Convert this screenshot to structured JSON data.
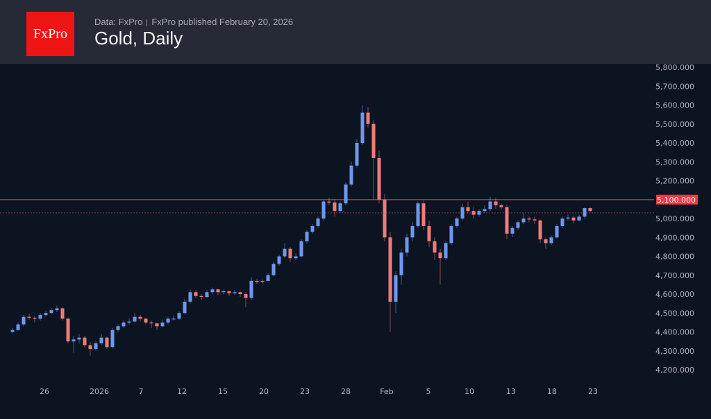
{
  "header": {
    "logo_text": "FxPro",
    "data_source": "Data: FxPro",
    "published": "FxPro published February 20, 2026",
    "title": "Gold, Daily"
  },
  "colors": {
    "background": "#0d1421",
    "header_bg": "#262a36",
    "logo_bg": "#f01515",
    "up": "#6e97ee",
    "down": "#f07b7b",
    "level_line": "#a8323e",
    "level_label_bg": "#f23645"
  },
  "chart_data": {
    "type": "candlestick",
    "title": "Gold, Daily",
    "ylim": [
      4150,
      5850
    ],
    "y_ticks": [
      "4,200.000",
      "4,300.000",
      "4,400.000",
      "4,500.000",
      "4,600.000",
      "4,700.000",
      "4,800.000",
      "4,900.000",
      "5,000.000",
      "5,100.000",
      "5,200.000",
      "5,300.000",
      "5,400.000",
      "5,500.000",
      "5,600.000",
      "5,700.000",
      "5,800.000"
    ],
    "y_tick_values": [
      4200,
      4300,
      4400,
      4500,
      4600,
      4700,
      4800,
      4900,
      5000,
      5100,
      5200,
      5300,
      5400,
      5500,
      5600,
      5700,
      5800
    ],
    "x_ticks": [
      "26",
      "2026",
      "7",
      "12",
      "15",
      "20",
      "23",
      "28",
      "Feb",
      "5",
      "10",
      "13",
      "18",
      "23"
    ],
    "horizontal_level": {
      "value": 5100,
      "label": "5,100.000"
    },
    "dashed_level": 5030,
    "grid": false,
    "ohlc": [
      [
        4400,
        4420,
        4395,
        4410
      ],
      [
        4410,
        4450,
        4405,
        4440
      ],
      [
        4440,
        4490,
        4430,
        4480
      ],
      [
        4480,
        4495,
        4465,
        4475
      ],
      [
        4475,
        4485,
        4450,
        4470
      ],
      [
        4470,
        4500,
        4460,
        4490
      ],
      [
        4490,
        4510,
        4480,
        4500
      ],
      [
        4500,
        4525,
        4495,
        4515
      ],
      [
        4515,
        4540,
        4505,
        4525
      ],
      [
        4525,
        4530,
        4460,
        4470
      ],
      [
        4470,
        4475,
        4340,
        4350
      ],
      [
        4350,
        4380,
        4290,
        4360
      ],
      [
        4360,
        4390,
        4340,
        4370
      ],
      [
        4370,
        4380,
        4320,
        4330
      ],
      [
        4330,
        4345,
        4275,
        4310
      ],
      [
        4310,
        4350,
        4300,
        4340
      ],
      [
        4340,
        4390,
        4330,
        4370
      ],
      [
        4370,
        4375,
        4310,
        4320
      ],
      [
        4320,
        4420,
        4315,
        4410
      ],
      [
        4410,
        4440,
        4400,
        4430
      ],
      [
        4430,
        4460,
        4420,
        4450
      ],
      [
        4450,
        4470,
        4440,
        4455
      ],
      [
        4455,
        4500,
        4450,
        4480
      ],
      [
        4480,
        4490,
        4455,
        4470
      ],
      [
        4470,
        4475,
        4440,
        4450
      ],
      [
        4450,
        4460,
        4420,
        4445
      ],
      [
        4445,
        4450,
        4410,
        4430
      ],
      [
        4430,
        4465,
        4425,
        4450
      ],
      [
        4450,
        4480,
        4440,
        4470
      ],
      [
        4470,
        4485,
        4460,
        4470
      ],
      [
        4470,
        4510,
        4465,
        4500
      ],
      [
        4500,
        4575,
        4495,
        4560
      ],
      [
        4560,
        4625,
        4550,
        4610
      ],
      [
        4610,
        4620,
        4580,
        4590
      ],
      [
        4590,
        4600,
        4570,
        4585
      ],
      [
        4585,
        4620,
        4580,
        4610
      ],
      [
        4610,
        4635,
        4600,
        4625
      ],
      [
        4625,
        4630,
        4595,
        4610
      ],
      [
        4610,
        4625,
        4600,
        4615
      ],
      [
        4615,
        4620,
        4590,
        4605
      ],
      [
        4605,
        4620,
        4595,
        4610
      ],
      [
        4610,
        4615,
        4585,
        4600
      ],
      [
        4600,
        4610,
        4530,
        4580
      ],
      [
        4580,
        4690,
        4570,
        4670
      ],
      [
        4670,
        4680,
        4655,
        4665
      ],
      [
        4665,
        4680,
        4655,
        4670
      ],
      [
        4670,
        4710,
        4665,
        4700
      ],
      [
        4700,
        4770,
        4695,
        4760
      ],
      [
        4760,
        4810,
        4750,
        4800
      ],
      [
        4800,
        4870,
        4790,
        4840
      ],
      [
        4840,
        4850,
        4770,
        4790
      ],
      [
        4790,
        4815,
        4780,
        4800
      ],
      [
        4800,
        4890,
        4795,
        4880
      ],
      [
        4880,
        4940,
        4870,
        4930
      ],
      [
        4930,
        4970,
        4920,
        4960
      ],
      [
        4960,
        5010,
        4950,
        5000
      ],
      [
        5000,
        5100,
        4990,
        5090
      ],
      [
        5090,
        5110,
        5070,
        5085
      ],
      [
        5085,
        5100,
        5010,
        5040
      ],
      [
        5040,
        5090,
        5030,
        5080
      ],
      [
        5080,
        5190,
        5070,
        5180
      ],
      [
        5180,
        5300,
        5170,
        5280
      ],
      [
        5280,
        5420,
        5270,
        5400
      ],
      [
        5400,
        5600,
        5390,
        5560
      ],
      [
        5560,
        5590,
        5480,
        5500
      ],
      [
        5500,
        5520,
        5100,
        5320
      ],
      [
        5320,
        5360,
        5080,
        5100
      ],
      [
        5100,
        5130,
        4880,
        4900
      ],
      [
        4900,
        4930,
        4400,
        4560
      ],
      [
        4560,
        4720,
        4500,
        4700
      ],
      [
        4700,
        4840,
        4650,
        4820
      ],
      [
        4820,
        4920,
        4800,
        4900
      ],
      [
        4900,
        4980,
        4880,
        4960
      ],
      [
        4960,
        5090,
        4950,
        5080
      ],
      [
        5080,
        5095,
        4940,
        4960
      ],
      [
        4960,
        4990,
        4850,
        4880
      ],
      [
        4880,
        4900,
        4780,
        4820
      ],
      [
        4820,
        4840,
        4650,
        4790
      ],
      [
        4790,
        4880,
        4780,
        4870
      ],
      [
        4870,
        4970,
        4860,
        4960
      ],
      [
        4960,
        5010,
        4950,
        5000
      ],
      [
        5000,
        5080,
        4990,
        5060
      ],
      [
        5060,
        5090,
        5030,
        5040
      ],
      [
        5040,
        5060,
        5000,
        5020
      ],
      [
        5020,
        5050,
        5010,
        5040
      ],
      [
        5040,
        5070,
        5030,
        5050
      ],
      [
        5050,
        5115,
        5040,
        5090
      ],
      [
        5090,
        5110,
        5050,
        5070
      ],
      [
        5070,
        5080,
        5050,
        5060
      ],
      [
        5060,
        5070,
        4890,
        4920
      ],
      [
        4920,
        4960,
        4900,
        4950
      ],
      [
        4950,
        4990,
        4940,
        4980
      ],
      [
        4980,
        5030,
        4970,
        5000
      ],
      [
        5000,
        5010,
        4980,
        4995
      ],
      [
        4995,
        5010,
        4970,
        4990
      ],
      [
        4990,
        4995,
        4870,
        4890
      ],
      [
        4890,
        4900,
        4840,
        4870
      ],
      [
        4870,
        4910,
        4860,
        4900
      ],
      [
        4900,
        4970,
        4895,
        4960
      ],
      [
        4960,
        5010,
        4950,
        5000
      ],
      [
        5000,
        5020,
        4990,
        5005
      ],
      [
        5005,
        5015,
        4975,
        4990
      ],
      [
        4990,
        5020,
        4985,
        5010
      ],
      [
        5010,
        5060,
        5000,
        5055
      ],
      [
        5055,
        5062,
        5032,
        5040
      ]
    ]
  }
}
